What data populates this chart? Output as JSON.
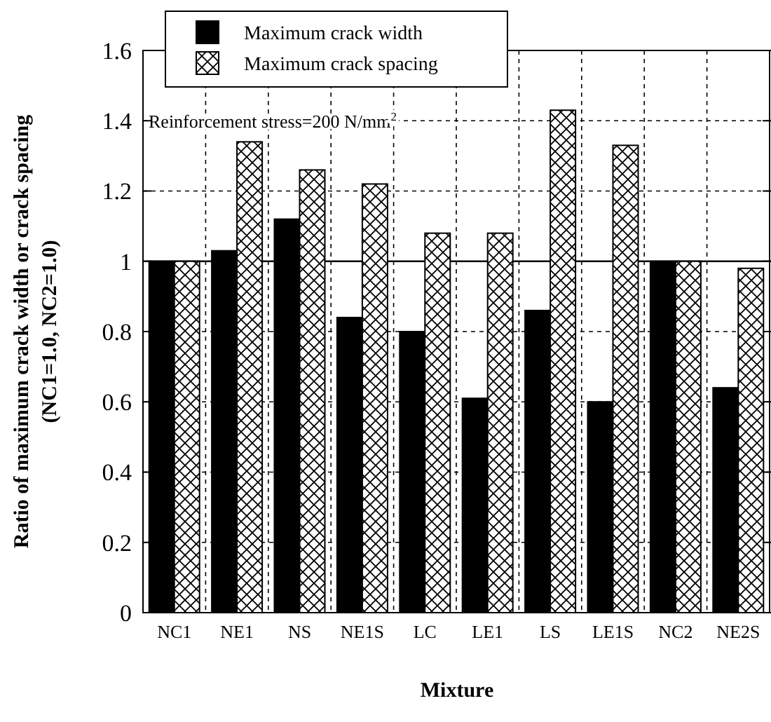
{
  "chart_data": {
    "type": "bar",
    "xlabel": "Mixture",
    "ylabel": "Ratio of maximum crack width or crack spacing\n(NC1=1.0, NC2=1.0)",
    "categories": [
      "NC1",
      "NE1",
      "NS",
      "NE1S",
      "LC",
      "LE1",
      "LS",
      "LE1S",
      "NC2",
      "NE2S"
    ],
    "series": [
      {
        "name": "Maximum crack width",
        "color": "#000000",
        "values": [
          1.0,
          1.03,
          1.12,
          0.84,
          0.8,
          0.61,
          0.86,
          0.6,
          1.0,
          0.64
        ]
      },
      {
        "name": "Maximum crack spacing",
        "color": "#000000",
        "values": [
          1.0,
          1.34,
          1.26,
          1.22,
          1.08,
          1.08,
          1.43,
          1.33,
          1.0,
          0.98
        ]
      }
    ],
    "ylim": [
      0,
      1.6
    ],
    "yticks": [
      0,
      0.2,
      0.4,
      0.6,
      0.8,
      1,
      1.2,
      1.4,
      1.6
    ],
    "grid": true,
    "legend": "top left",
    "ref_lines": [
      {
        "axis": "y",
        "value": 1,
        "color": "#000000",
        "line_style": "solid"
      }
    ],
    "annotations": [
      "Reinforcement stress=200 N/mm$^{2}$"
    ]
  }
}
